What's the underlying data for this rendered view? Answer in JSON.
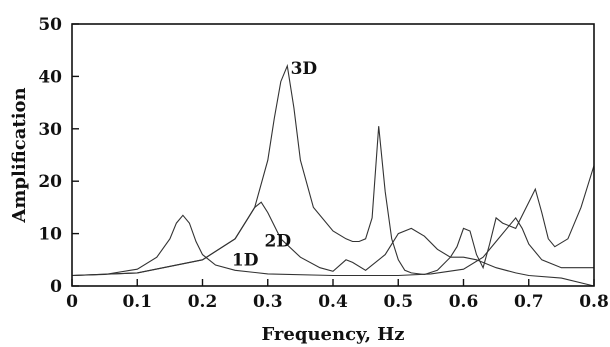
{
  "chart_data": {
    "type": "line",
    "xlabel": "Frequency, Hz",
    "ylabel": "Amplification",
    "xlim": [
      0,
      0.8
    ],
    "ylim": [
      0,
      50
    ],
    "x_ticks": [
      "0",
      "0.1",
      "0.2",
      "0.3",
      "0.4",
      "0.5",
      "0.6",
      "0.7",
      "0.8"
    ],
    "y_ticks": [
      "0",
      "10",
      "20",
      "30",
      "40",
      "50"
    ],
    "grid": false,
    "legend": "none",
    "series": [
      {
        "name": "1D",
        "x": [
          0,
          0.05,
          0.1,
          0.13,
          0.15,
          0.16,
          0.17,
          0.18,
          0.19,
          0.2,
          0.22,
          0.25,
          0.3,
          0.4,
          0.5,
          0.55,
          0.6,
          0.63,
          0.65,
          0.67,
          0.68,
          0.69,
          0.7,
          0.72,
          0.75,
          0.8
        ],
        "y": [
          2.0,
          2.2,
          3.2,
          5.5,
          9.0,
          12.0,
          13.5,
          12.0,
          8.5,
          6.0,
          4.0,
          3.0,
          2.3,
          2.0,
          2.0,
          2.3,
          3.2,
          5.5,
          8.5,
          11.5,
          13.0,
          11.0,
          8.0,
          5.0,
          3.5,
          3.5
        ]
      },
      {
        "name": "2D",
        "x": [
          0,
          0.1,
          0.2,
          0.25,
          0.27,
          0.28,
          0.29,
          0.3,
          0.32,
          0.35,
          0.38,
          0.4,
          0.42,
          0.43,
          0.45,
          0.48,
          0.5,
          0.52,
          0.54,
          0.56,
          0.58,
          0.6,
          0.62,
          0.65,
          0.68,
          0.7,
          0.75,
          0.8
        ],
        "y": [
          2.0,
          2.5,
          5.0,
          9.0,
          13.0,
          15.0,
          16.0,
          14.0,
          9.0,
          5.5,
          3.5,
          2.8,
          5.0,
          4.5,
          3.0,
          6.0,
          10.0,
          11.0,
          9.5,
          7.0,
          5.5,
          5.5,
          5.0,
          3.5,
          2.5,
          2.0,
          1.5,
          0.0
        ]
      },
      {
        "name": "3D",
        "x": [
          0,
          0.1,
          0.2,
          0.25,
          0.28,
          0.3,
          0.31,
          0.32,
          0.33,
          0.34,
          0.35,
          0.37,
          0.4,
          0.42,
          0.43,
          0.44,
          0.45,
          0.46,
          0.47,
          0.48,
          0.49,
          0.5,
          0.51,
          0.52,
          0.54,
          0.56,
          0.58,
          0.59,
          0.6,
          0.61,
          0.62,
          0.63,
          0.64,
          0.65,
          0.66,
          0.68,
          0.7,
          0.71,
          0.72,
          0.73,
          0.74,
          0.76,
          0.78,
          0.8
        ],
        "y": [
          2.0,
          2.5,
          5.0,
          9.0,
          15.0,
          24.0,
          32.0,
          39.0,
          42.0,
          34.0,
          24.0,
          15.0,
          10.5,
          9.0,
          8.5,
          8.5,
          9.0,
          13.0,
          30.5,
          18.0,
          9.0,
          5.0,
          3.0,
          2.5,
          2.2,
          3.0,
          5.5,
          7.5,
          11.0,
          10.5,
          6.0,
          3.5,
          8.0,
          13.0,
          12.0,
          11.0,
          16.0,
          18.5,
          14.0,
          9.0,
          7.5,
          9.0,
          15.0,
          23.0
        ]
      }
    ],
    "curve_labels": [
      {
        "text": "3D",
        "series": "3D",
        "x": 0.335,
        "y": 40.5
      },
      {
        "text": "2D",
        "series": "2D",
        "x": 0.295,
        "y": 7.5
      },
      {
        "text": "1D",
        "series": "1D",
        "x": 0.245,
        "y": 3.9
      }
    ]
  }
}
